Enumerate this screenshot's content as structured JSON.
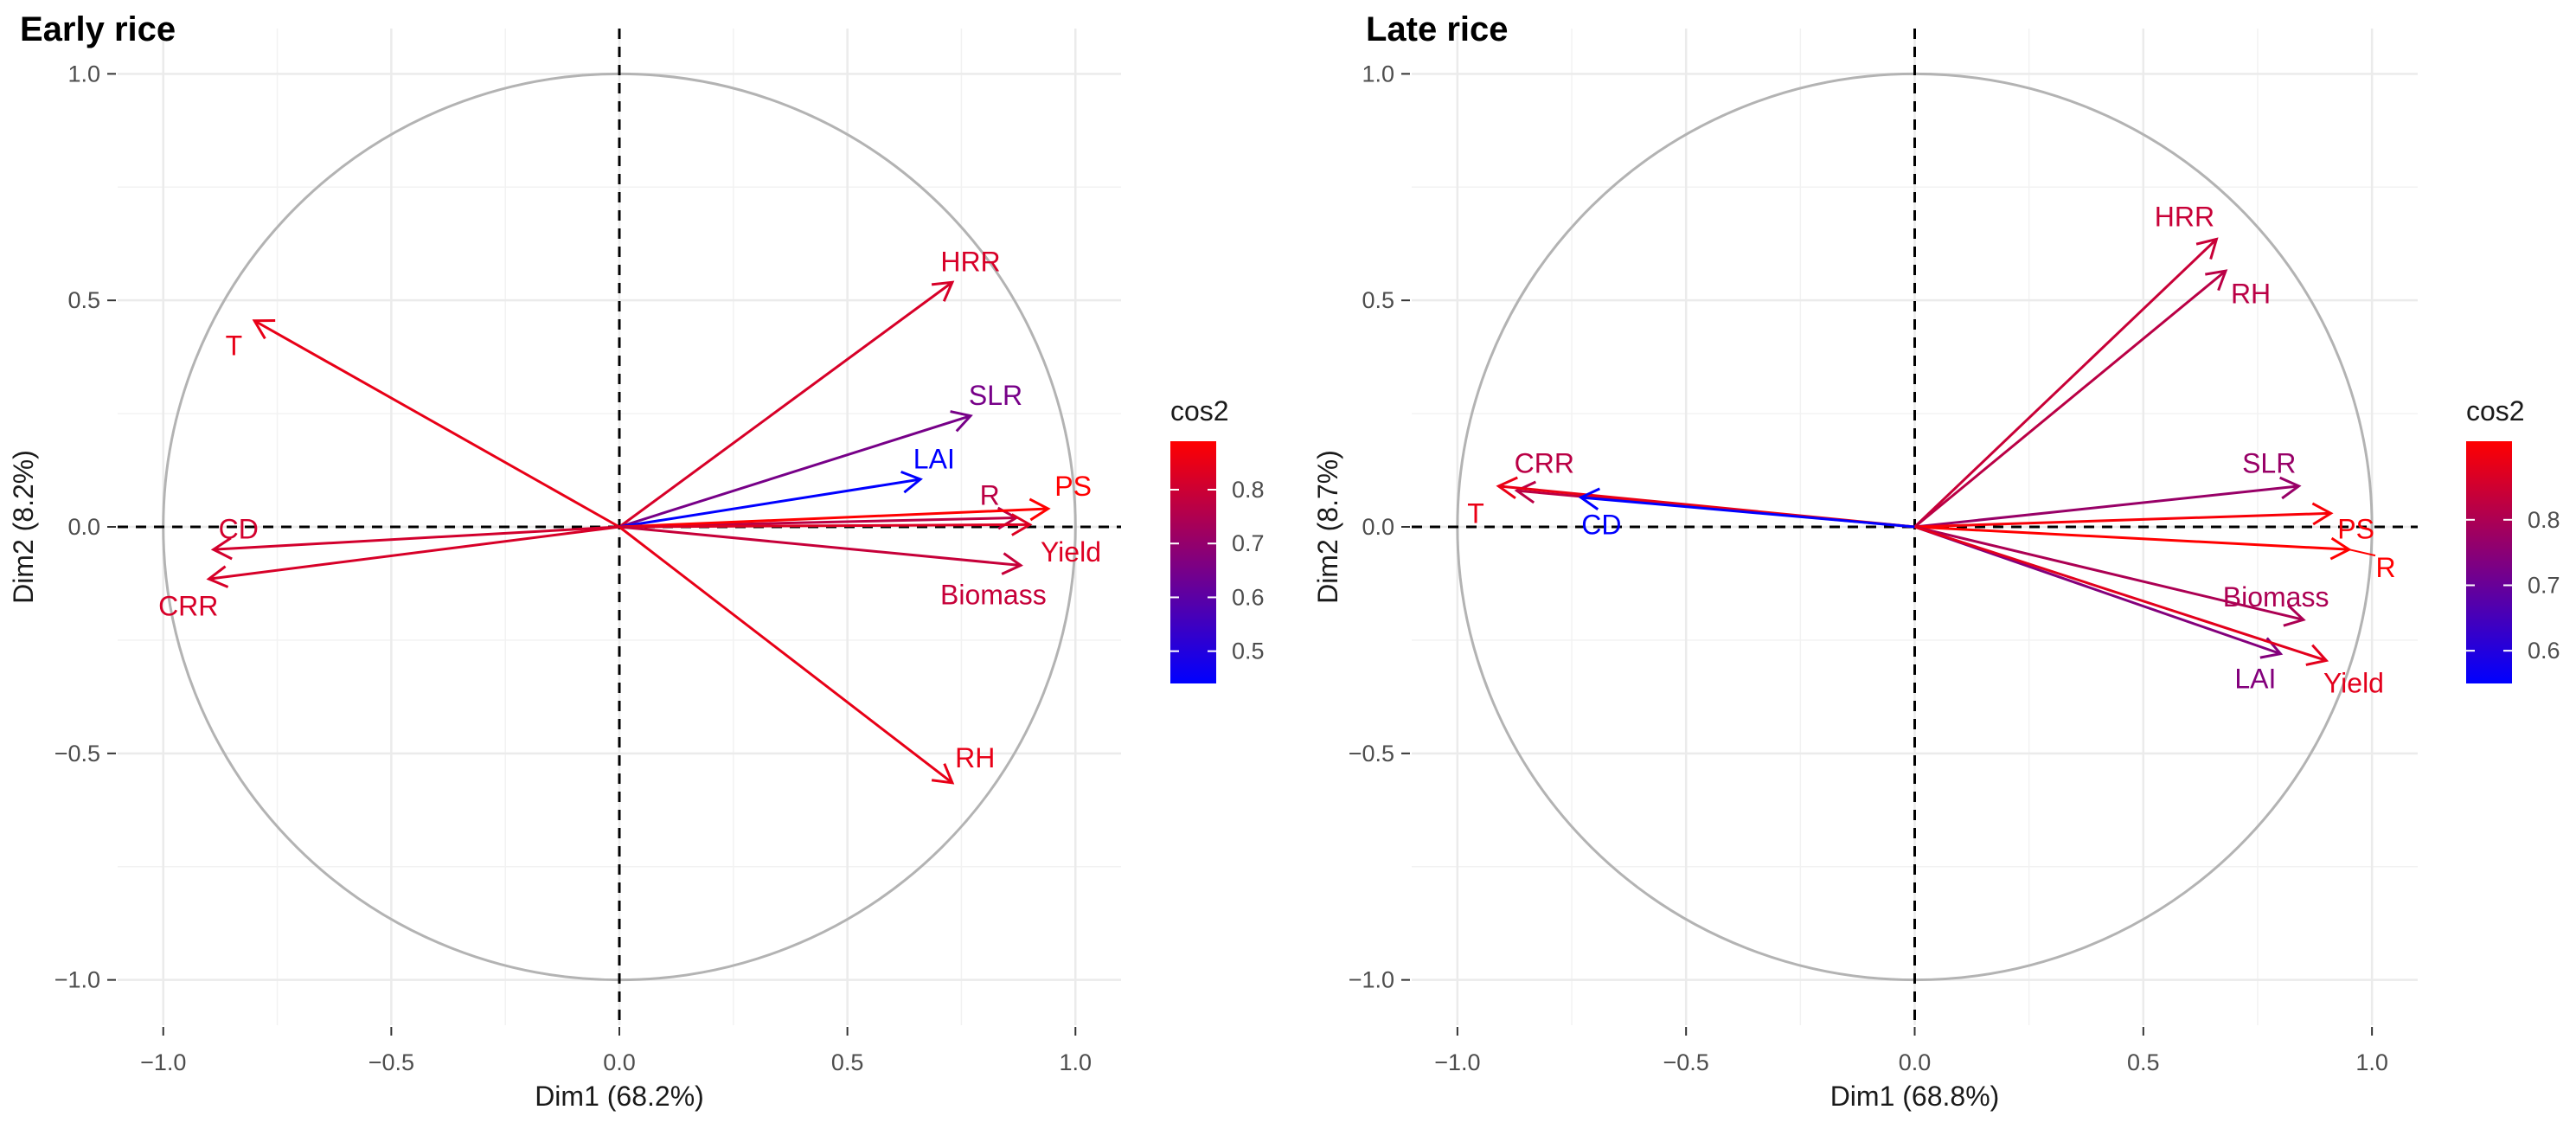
{
  "chart_data": [
    {
      "type": "pca-variable-correlation-circle",
      "title": "Early rice",
      "xlabel": "Dim1 (68.2%)",
      "ylabel": "Dim2 (8.2%)",
      "xlim": [
        -1.1,
        1.1
      ],
      "ylim": [
        -1.1,
        1.1
      ],
      "x_ticks": [
        -1.0,
        -0.5,
        0.0,
        0.5,
        1.0
      ],
      "x_tick_labels": [
        "−1.0",
        "−0.5",
        "0.0",
        "0.5",
        "1.0"
      ],
      "y_ticks": [
        -1.0,
        -0.5,
        0.0,
        0.5,
        1.0
      ],
      "y_tick_labels": [
        "−1.0",
        "−0.5",
        "0.0",
        "0.5",
        "1.0"
      ],
      "grid": true,
      "unit_circle": true,
      "color_scale": {
        "title": "cos2",
        "min": 0.44,
        "max": 0.89,
        "low_color": "#0000ff",
        "high_color": "#ff0000",
        "ticks": [
          0.5,
          0.6,
          0.7,
          0.8
        ],
        "tick_labels": [
          "0.5",
          "0.6",
          "0.7",
          "0.8"
        ]
      },
      "variables": [
        {
          "name": "HRR",
          "x": 0.73,
          "y": 0.54,
          "cos2": 0.82,
          "label_x": 0.77,
          "label_y": 0.585
        },
        {
          "name": "T",
          "x": -0.8,
          "y": 0.455,
          "cos2": 0.85,
          "label_x": -0.845,
          "label_y": 0.4
        },
        {
          "name": "SLR",
          "x": 0.77,
          "y": 0.245,
          "cos2": 0.65,
          "label_x": 0.825,
          "label_y": 0.29
        },
        {
          "name": "LAI",
          "x": 0.66,
          "y": 0.105,
          "cos2": 0.44,
          "label_x": 0.69,
          "label_y": 0.15
        },
        {
          "name": "R",
          "x": 0.87,
          "y": 0.02,
          "cos2": 0.77,
          "label_x": 0.812,
          "label_y": 0.07
        },
        {
          "name": "PS",
          "x": 0.94,
          "y": 0.04,
          "cos2": 0.89,
          "label_x": 0.995,
          "label_y": 0.09
        },
        {
          "name": "Yield",
          "x": 0.9,
          "y": 0.005,
          "cos2": 0.83,
          "label_x": 0.99,
          "label_y": -0.055
        },
        {
          "name": "Biomass",
          "x": 0.88,
          "y": -0.085,
          "cos2": 0.79,
          "label_x": 0.82,
          "label_y": -0.15
        },
        {
          "name": "CD",
          "x": -0.89,
          "y": -0.05,
          "cos2": 0.81,
          "label_x": -0.835,
          "label_y": -0.005
        },
        {
          "name": "CRR",
          "x": -0.9,
          "y": -0.115,
          "cos2": 0.82,
          "label_x": -0.945,
          "label_y": -0.175
        },
        {
          "name": "RH",
          "x": 0.73,
          "y": -0.565,
          "cos2": 0.85,
          "label_x": 0.78,
          "label_y": -0.51
        }
      ]
    },
    {
      "type": "pca-variable-correlation-circle",
      "title": "Late rice",
      "xlabel": "Dim1 (68.8%)",
      "ylabel": "Dim2 (8.7%)",
      "xlim": [
        -1.1,
        1.1
      ],
      "ylim": [
        -1.1,
        1.1
      ],
      "x_ticks": [
        -1.0,
        -0.5,
        0.0,
        0.5,
        1.0
      ],
      "x_tick_labels": [
        "−1.0",
        "−0.5",
        "0.0",
        "0.5",
        "1.0"
      ],
      "y_ticks": [
        -1.0,
        -0.5,
        0.0,
        0.5,
        1.0
      ],
      "y_tick_labels": [
        "−1.0",
        "−0.5",
        "0.0",
        "0.5",
        "1.0"
      ],
      "grid": true,
      "unit_circle": true,
      "color_scale": {
        "title": "cos2",
        "min": 0.55,
        "max": 0.92,
        "low_color": "#0000ff",
        "high_color": "#ff0000",
        "ticks": [
          0.6,
          0.7,
          0.8
        ],
        "tick_labels": [
          "0.6",
          "0.7",
          "0.8"
        ]
      },
      "variables": [
        {
          "name": "HRR",
          "x": 0.66,
          "y": 0.635,
          "cos2": 0.84,
          "label_x": 0.59,
          "label_y": 0.685
        },
        {
          "name": "RH",
          "x": 0.68,
          "y": 0.565,
          "cos2": 0.82,
          "label_x": 0.735,
          "label_y": 0.515
        },
        {
          "name": "CRR",
          "x": -0.87,
          "y": 0.08,
          "cos2": 0.82,
          "label_x": -0.81,
          "label_y": 0.14
        },
        {
          "name": "T",
          "x": -0.91,
          "y": 0.09,
          "cos2": 0.89,
          "label_x": -0.96,
          "label_y": 0.03
        },
        {
          "name": "CD",
          "x": -0.73,
          "y": 0.065,
          "cos2": 0.55,
          "label_x": -0.685,
          "label_y": 0.005
        },
        {
          "name": "SLR",
          "x": 0.84,
          "y": 0.09,
          "cos2": 0.77,
          "label_x": 0.775,
          "label_y": 0.14
        },
        {
          "name": "PS",
          "x": 0.91,
          "y": 0.03,
          "cos2": 0.91,
          "label_x": 0.965,
          "label_y": -0.005
        },
        {
          "name": "R",
          "x": 0.95,
          "y": -0.05,
          "cos2": 0.92,
          "label_x": 1.03,
          "label_y": -0.09
        },
        {
          "name": "Biomass",
          "x": 0.85,
          "y": -0.205,
          "cos2": 0.8,
          "label_x": 0.79,
          "label_y": -0.155
        },
        {
          "name": "LAI",
          "x": 0.8,
          "y": -0.28,
          "cos2": 0.74,
          "label_x": 0.745,
          "label_y": -0.335
        },
        {
          "name": "Yield",
          "x": 0.9,
          "y": -0.295,
          "cos2": 0.88,
          "label_x": 0.96,
          "label_y": -0.345
        }
      ]
    }
  ]
}
